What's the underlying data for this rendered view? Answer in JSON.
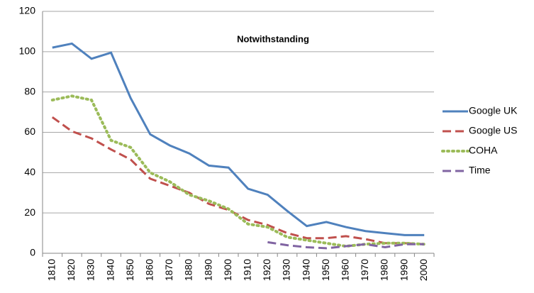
{
  "chart_data": {
    "type": "line",
    "title": "Notwithstanding",
    "categories": [
      "1810",
      "1820",
      "1830",
      "1840",
      "1850",
      "1860",
      "1870",
      "1880",
      "1890",
      "1900",
      "1910",
      "1920",
      "1930",
      "1940",
      "1950",
      "1960",
      "1970",
      "1980",
      "1990",
      "2000"
    ],
    "series": [
      {
        "name": "Google UK",
        "color": "#4f81bd",
        "style": "solid",
        "values": [
          102,
          104,
          96.5,
          99.5,
          77,
          59,
          53.5,
          49.5,
          43.5,
          42.5,
          32,
          29,
          21,
          13.5,
          15.5,
          13,
          11,
          10,
          9,
          9
        ]
      },
      {
        "name": "Google US",
        "color": "#c0504d",
        "style": "dashed",
        "values": [
          67.5,
          60.5,
          57,
          51.5,
          46.5,
          37,
          33.5,
          30,
          24.5,
          21.5,
          16.5,
          14,
          10,
          7.5,
          7.5,
          8.5,
          7,
          5,
          5,
          4.5
        ]
      },
      {
        "name": "COHA",
        "color": "#9bbb59",
        "style": "dotted",
        "values": [
          76,
          78,
          76,
          56,
          52.5,
          40,
          35.5,
          29,
          26,
          22,
          14.5,
          13,
          8,
          6.5,
          5,
          3.5,
          4.5,
          5,
          5,
          4.5
        ]
      },
      {
        "name": "Time",
        "color": "#8064a2",
        "style": "dashed",
        "values": [
          null,
          null,
          null,
          null,
          null,
          null,
          null,
          null,
          null,
          null,
          null,
          5.5,
          4,
          3,
          2.5,
          3.5,
          4.5,
          3,
          4.5,
          4.5
        ]
      }
    ],
    "ylim": [
      0,
      120
    ],
    "yticks": [
      0,
      20,
      40,
      60,
      80,
      100,
      120
    ],
    "grid": true,
    "legend": "right"
  }
}
